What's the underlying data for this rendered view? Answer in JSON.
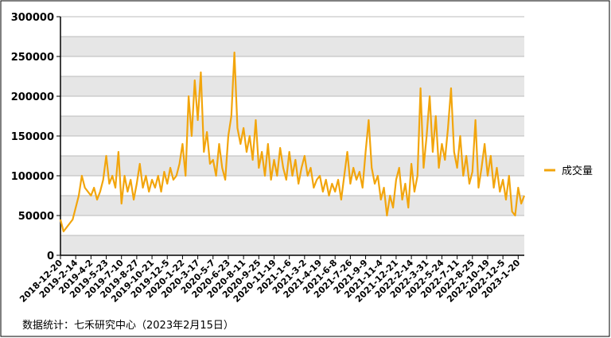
{
  "chart_data": {
    "type": "line",
    "categories": [
      "2018-12-20",
      null,
      null,
      null,
      null,
      "2019-2-14",
      null,
      null,
      null,
      null,
      "2019-4-2",
      null,
      null,
      null,
      null,
      "2019-5-23",
      null,
      null,
      null,
      null,
      "2019-7-10",
      null,
      null,
      null,
      null,
      "2019-8-27",
      null,
      null,
      null,
      null,
      "2019-10-21",
      null,
      null,
      null,
      null,
      "2019-12-5",
      null,
      null,
      null,
      null,
      "2020-1-22",
      null,
      null,
      null,
      null,
      "2020-3-17",
      null,
      null,
      null,
      null,
      "2020-5-7",
      null,
      null,
      null,
      null,
      "2020-6-23",
      null,
      null,
      null,
      null,
      "2020-8-11",
      null,
      null,
      null,
      null,
      "2020-9-25",
      null,
      null,
      null,
      null,
      "2020-11-19",
      null,
      null,
      null,
      null,
      "2021-1-6",
      null,
      null,
      null,
      null,
      "2021-3-2",
      null,
      null,
      null,
      null,
      "2021-4-19",
      null,
      null,
      null,
      null,
      "2021-6-8",
      null,
      null,
      null,
      null,
      "2021-7-26",
      null,
      null,
      null,
      null,
      "2021-9-9",
      null,
      null,
      null,
      null,
      "2021-11-4",
      null,
      null,
      null,
      null,
      "2021-12-21",
      null,
      null,
      null,
      null,
      "2022-2-14",
      null,
      null,
      null,
      null,
      "2022-3-31",
      null,
      null,
      null,
      null,
      "2022-5-24",
      null,
      null,
      null,
      null,
      "2022-7-11",
      null,
      null,
      null,
      null,
      "2022-8-25",
      null,
      null,
      null,
      null,
      "2022-10-19",
      null,
      null,
      null,
      null,
      "2022-12-5",
      null,
      null,
      null,
      null,
      "2023-1-20",
      null,
      null
    ],
    "series": [
      {
        "name": "成交量",
        "color": "#f2a50c",
        "values": [
          45000,
          30000,
          35000,
          40000,
          45000,
          60000,
          75000,
          100000,
          85000,
          80000,
          75000,
          85000,
          70000,
          80000,
          95000,
          125000,
          90000,
          100000,
          85000,
          130000,
          65000,
          100000,
          80000,
          95000,
          70000,
          90000,
          115000,
          85000,
          100000,
          80000,
          95000,
          85000,
          100000,
          80000,
          105000,
          90000,
          110000,
          95000,
          100000,
          115000,
          140000,
          100000,
          200000,
          150000,
          220000,
          170000,
          230000,
          130000,
          155000,
          115000,
          120000,
          100000,
          140000,
          110000,
          95000,
          150000,
          175000,
          255000,
          160000,
          140000,
          160000,
          130000,
          150000,
          120000,
          170000,
          110000,
          130000,
          100000,
          140000,
          95000,
          120000,
          100000,
          135000,
          110000,
          95000,
          130000,
          100000,
          120000,
          90000,
          110000,
          125000,
          100000,
          110000,
          85000,
          95000,
          100000,
          80000,
          95000,
          75000,
          90000,
          80000,
          95000,
          70000,
          100000,
          130000,
          90000,
          110000,
          95000,
          105000,
          85000,
          130000,
          170000,
          110000,
          90000,
          100000,
          70000,
          85000,
          50000,
          75000,
          60000,
          95000,
          110000,
          70000,
          90000,
          60000,
          115000,
          80000,
          100000,
          210000,
          110000,
          150000,
          200000,
          130000,
          175000,
          110000,
          140000,
          120000,
          160000,
          210000,
          130000,
          110000,
          150000,
          100000,
          125000,
          90000,
          105000,
          170000,
          85000,
          110000,
          140000,
          100000,
          125000,
          85000,
          110000,
          80000,
          95000,
          70000,
          100000,
          55000,
          50000,
          85000,
          65000,
          75000
        ]
      }
    ],
    "ylim": [
      0,
      300000
    ],
    "yticks": [
      0,
      50000,
      100000,
      150000,
      200000,
      250000,
      300000
    ],
    "grid": true,
    "legend": "right",
    "source": "数据统计：七禾研究中心（2023年2月15日）"
  }
}
